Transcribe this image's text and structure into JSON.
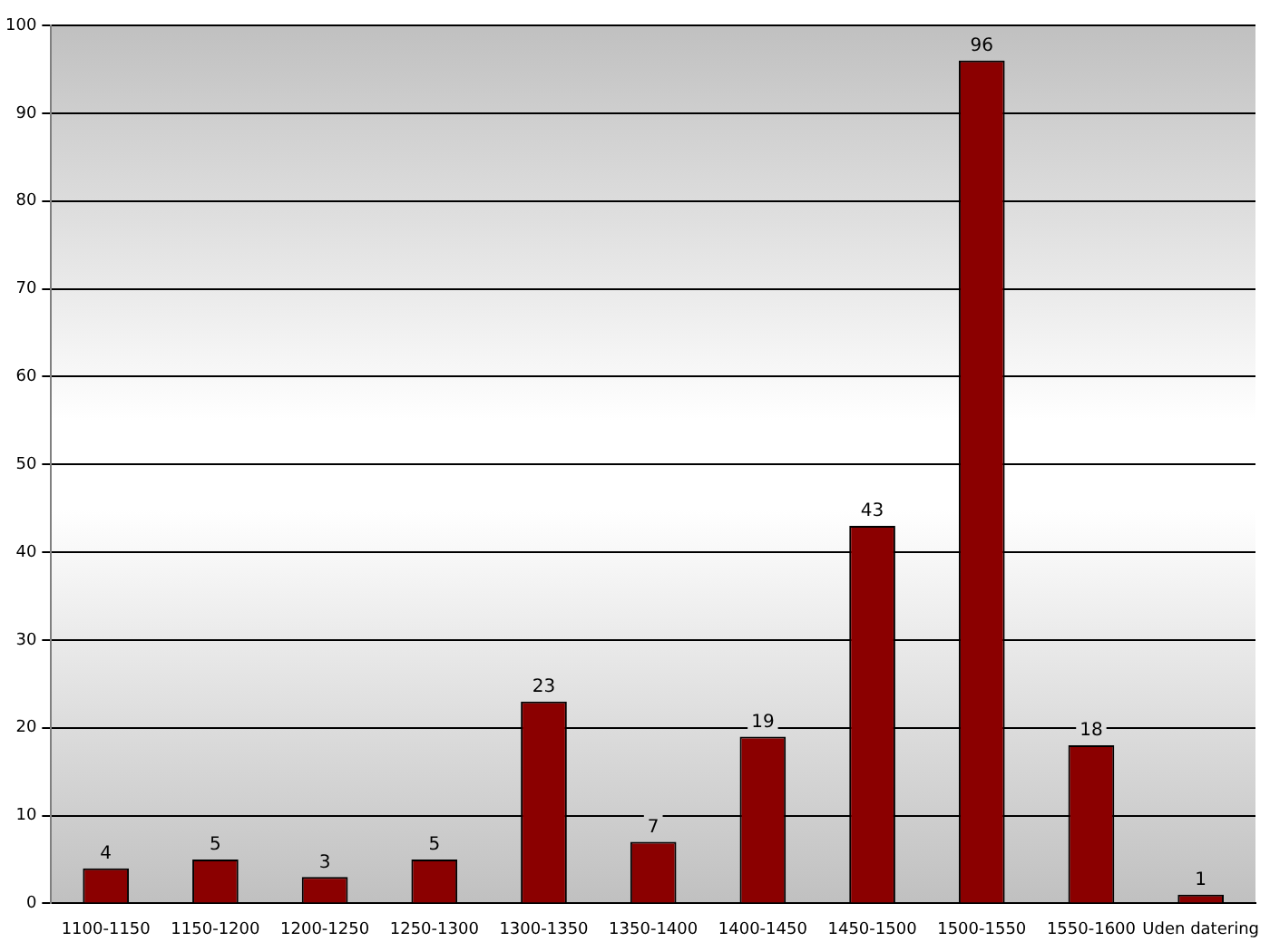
{
  "chart_data": {
    "type": "bar",
    "categories": [
      "1100-1150",
      "1150-1200",
      "1200-1250",
      "1250-1300",
      "1300-1350",
      "1350-1400",
      "1400-1450",
      "1450-1500",
      "1500-1550",
      "1550-1600",
      "Uden datering"
    ],
    "values": [
      4,
      5,
      3,
      5,
      23,
      7,
      19,
      43,
      96,
      18,
      1
    ],
    "color": "#8b0000",
    "ylim": [
      0,
      100
    ],
    "yticks": [
      0,
      10,
      20,
      30,
      40,
      50,
      60,
      70,
      80,
      90,
      100
    ],
    "grid": "y",
    "data_labels": true,
    "legend": false
  }
}
